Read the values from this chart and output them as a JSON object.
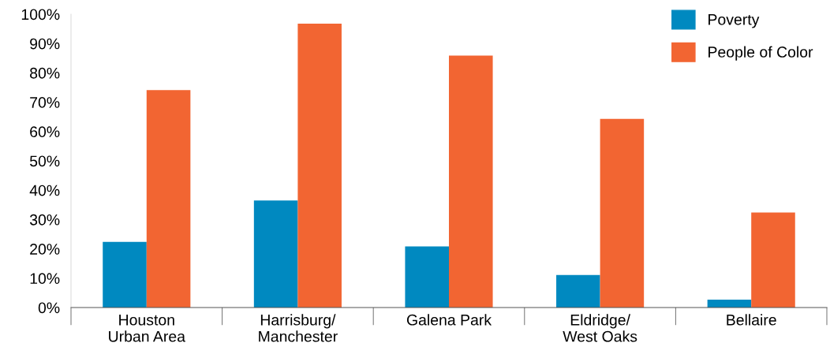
{
  "chart_data": {
    "type": "bar",
    "categories": [
      "Houston\nUrban Area",
      "Harrisburg/\nManchester",
      "Galena Park",
      "Eldridge/\nWest Oaks",
      "Bellaire"
    ],
    "series": [
      {
        "name": "Poverty",
        "color": "#0089c0",
        "values": [
          22.4,
          36.5,
          20.8,
          11.1,
          2.7
        ]
      },
      {
        "name": "People of Color",
        "color": "#f26532",
        "values": [
          74.1,
          96.8,
          85.9,
          64.3,
          32.4
        ]
      }
    ],
    "ylim": [
      0,
      100
    ],
    "yticks": [
      {
        "value": 0,
        "label": "0%"
      },
      {
        "value": 10,
        "label": "10%"
      },
      {
        "value": 20,
        "label": "20%"
      },
      {
        "value": 30,
        "label": "30%"
      },
      {
        "value": 40,
        "label": "40%"
      },
      {
        "value": 50,
        "label": "50%"
      },
      {
        "value": 60,
        "label": "60%"
      },
      {
        "value": 70,
        "label": "70%"
      },
      {
        "value": 80,
        "label": "80%"
      },
      {
        "value": 90,
        "label": "90%"
      },
      {
        "value": 100,
        "label": "100%"
      }
    ],
    "grid": false,
    "legend": "top right"
  }
}
